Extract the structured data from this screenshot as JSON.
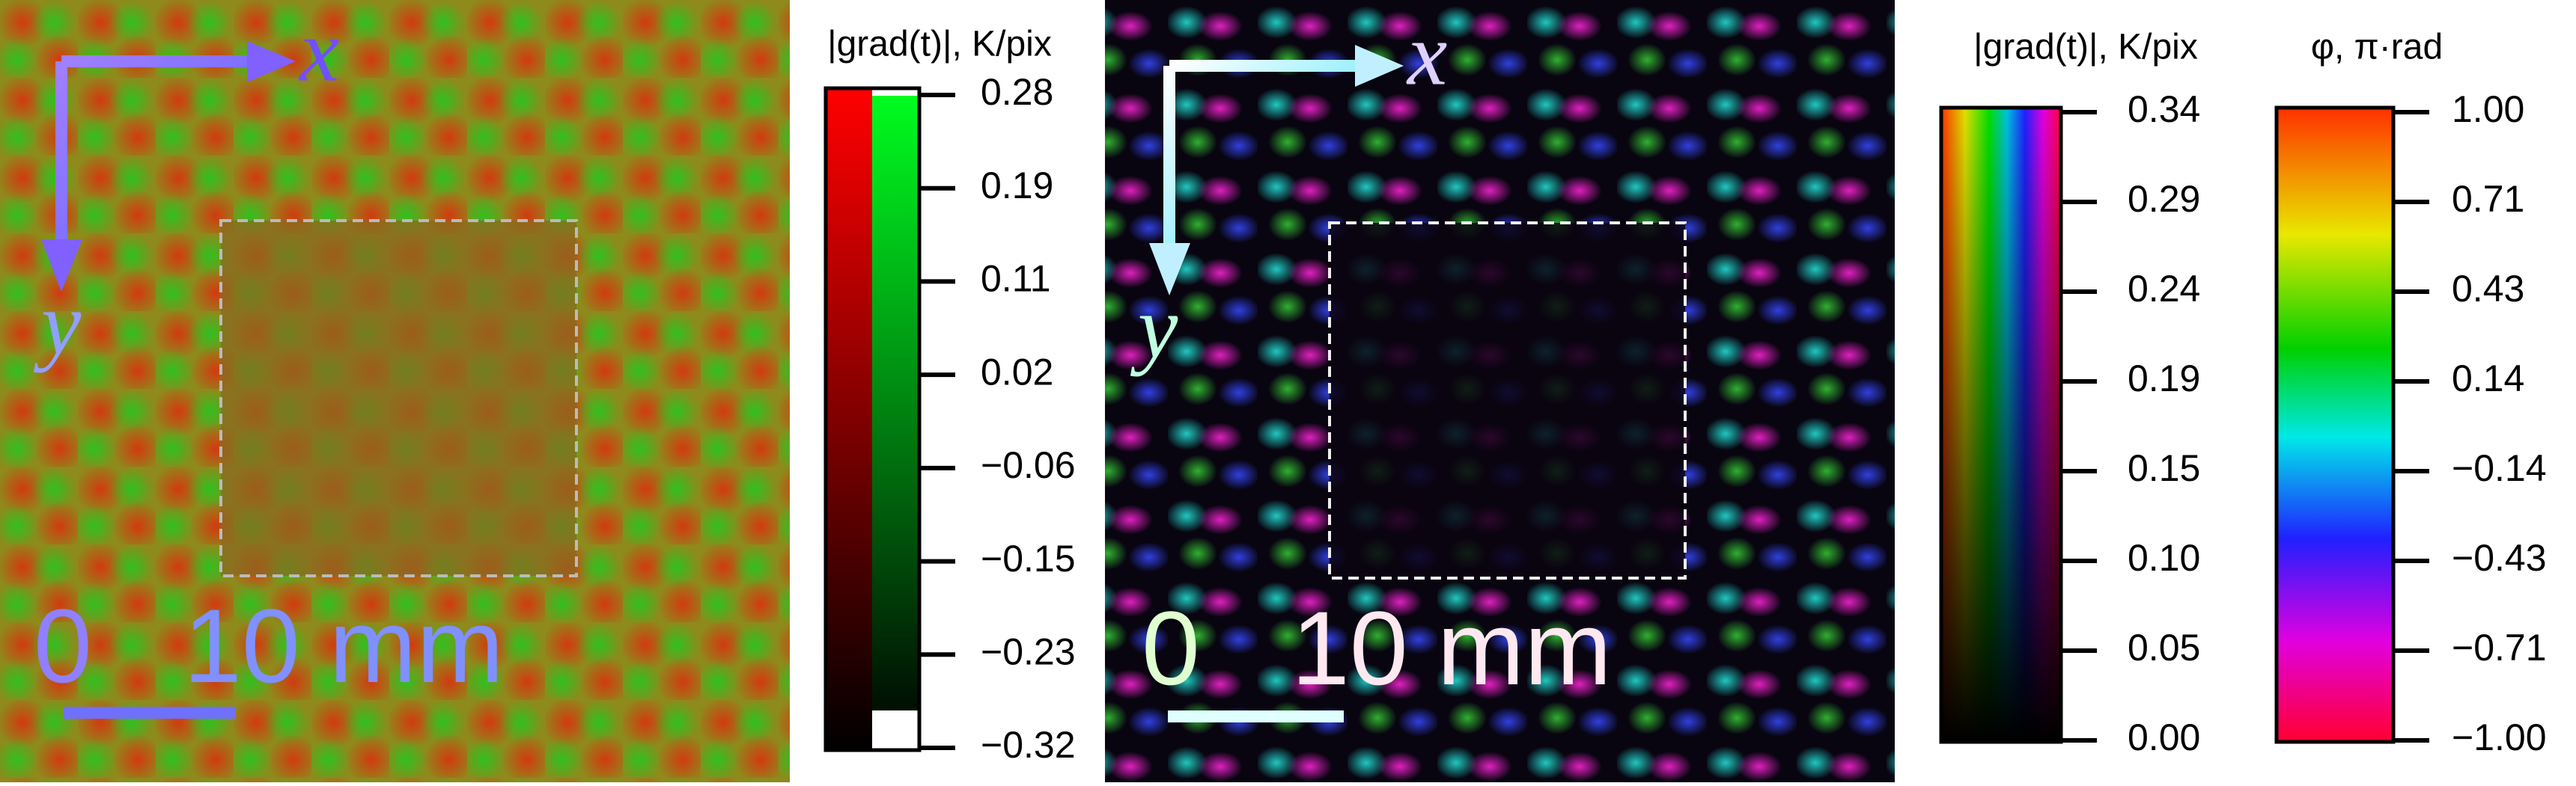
{
  "panels": [
    {
      "axis_x": "x",
      "axis_y": "y",
      "scale_start": "0",
      "scale_end": "10 mm"
    },
    {
      "axis_x": "x",
      "axis_y": "y",
      "scale_start": "0",
      "scale_end": "10 mm"
    }
  ],
  "colorbars": [
    {
      "title": "|grad(t)|, K/pix",
      "ticks": [
        "0.28",
        "0.19",
        "0.11",
        "0.02",
        "−0.06",
        "−0.15",
        "−0.23",
        "−0.32"
      ]
    },
    {
      "title": "|grad(t)|, K/pix",
      "ticks": [
        "0.34",
        "0.29",
        "0.24",
        "0.19",
        "0.15",
        "0.10",
        "0.05",
        "0.00"
      ]
    },
    {
      "title": "φ, π·rad",
      "ticks": [
        "1.00",
        "0.71",
        "0.43",
        "0.14",
        "−0.14",
        "−0.43",
        "−0.71",
        "−1.00"
      ]
    }
  ]
}
